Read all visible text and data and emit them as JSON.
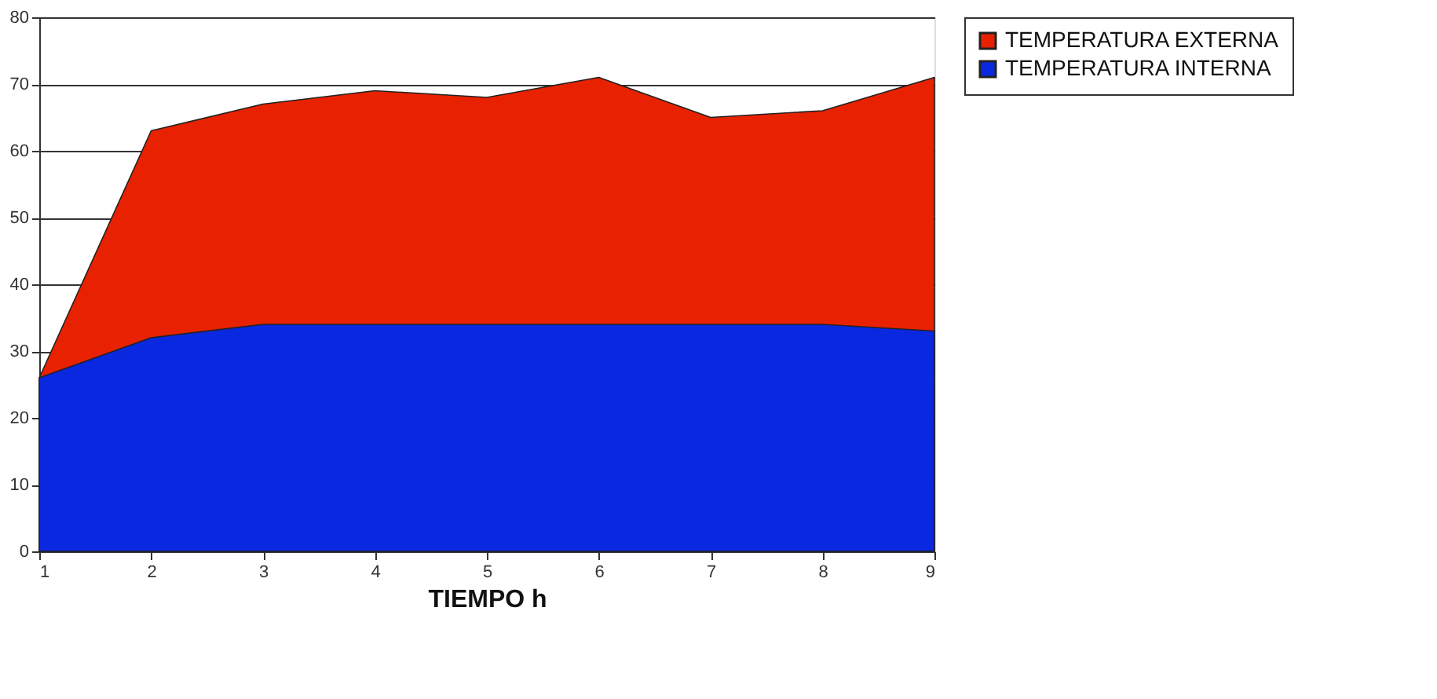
{
  "chart_data": {
    "type": "area",
    "xlabel": "TIEMPO h",
    "x": [
      1,
      2,
      3,
      4,
      5,
      6,
      7,
      8,
      9
    ],
    "series": [
      {
        "name": "TEMPERATURA EXTERNA",
        "color": "#e82200",
        "values": [
          26,
          63,
          67,
          69,
          68,
          71,
          65,
          66,
          71
        ]
      },
      {
        "name": "TEMPERATURA INTERNA",
        "color": "#0a28e0",
        "values": [
          26,
          32,
          34,
          34,
          34,
          34,
          34,
          34,
          33
        ]
      }
    ],
    "xlim": [
      1,
      9
    ],
    "xticks": [
      1,
      2,
      3,
      4,
      5,
      6,
      7,
      8,
      9
    ],
    "ylim": [
      0,
      80
    ],
    "yticks": [
      0,
      10,
      20,
      30,
      40,
      50,
      60,
      70,
      80
    ],
    "grid": "y",
    "legend": "right"
  }
}
